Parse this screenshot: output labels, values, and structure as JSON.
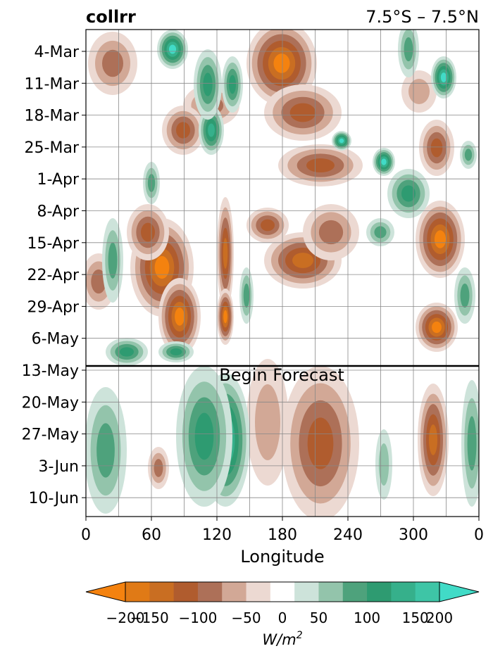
{
  "chart_data": {
    "type": "heatmap",
    "title_left": "collrr",
    "title_right": "7.5°S – 7.5°N",
    "xlabel": "Longitude",
    "x_ticks": [
      "0",
      "60",
      "120",
      "180",
      "240",
      "300",
      "0"
    ],
    "xlim": [
      0,
      360
    ],
    "y_ticks": [
      "4-Mar",
      "11-Mar",
      "18-Mar",
      "25-Mar",
      "1-Apr",
      "8-Apr",
      "15-Apr",
      "22-Apr",
      "29-Apr",
      "6-May",
      "13-May",
      "20-May",
      "27-May",
      "3-Jun",
      "10-Jun"
    ],
    "forecast_label": "Begin Forecast",
    "forecast_start": "13-May",
    "colorbar": {
      "label": "W/m²",
      "ticks": [
        "−200",
        "−150",
        "−100",
        "−50",
        "0",
        "50",
        "100",
        "150",
        "200"
      ],
      "levels": [
        -200,
        -175,
        -150,
        -125,
        -100,
        -75,
        -50,
        -25,
        25,
        50,
        75,
        100,
        125,
        150,
        175,
        200
      ],
      "colors": [
        "#f4820f",
        "#e07a16",
        "#c96e22",
        "#b05c2e",
        "#ad7058",
        "#d2a896",
        "#ecd9d2",
        "#ffffff",
        "#cde3da",
        "#93c4ab",
        "#4ea27c",
        "#2e9b71",
        "#36b08b",
        "#3ec5a6",
        "#41dbc7"
      ]
    }
  }
}
